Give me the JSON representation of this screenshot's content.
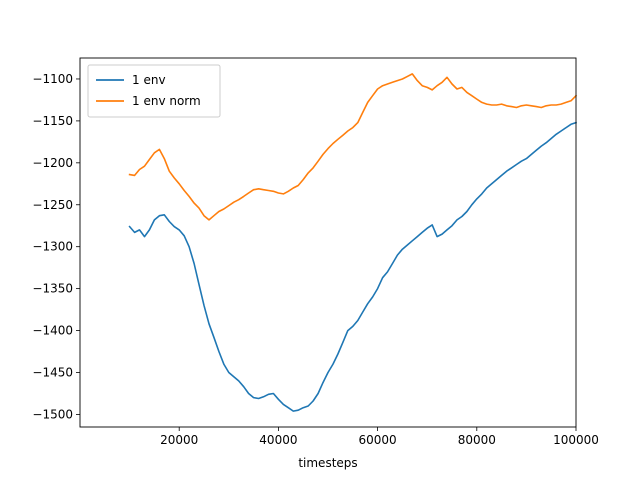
{
  "chart_data": {
    "type": "line",
    "title": "",
    "xlabel": "timesteps",
    "ylabel": "",
    "xlim": [
      0,
      100000
    ],
    "ylim": [
      -1515,
      -1075
    ],
    "x_ticks": [
      20000,
      40000,
      60000,
      80000,
      100000
    ],
    "x_tick_labels": [
      "20000",
      "40000",
      "60000",
      "80000",
      "100000"
    ],
    "y_ticks": [
      -1500,
      -1450,
      -1400,
      -1350,
      -1300,
      -1250,
      -1200,
      -1150,
      -1100
    ],
    "y_tick_labels": [
      "−1500",
      "−1450",
      "−1400",
      "−1350",
      "−1300",
      "−1250",
      "−1200",
      "−1150",
      "−1100"
    ],
    "grid": false,
    "legend_position": "top-left",
    "series": [
      {
        "name": "1 env",
        "color": "#1f77b4",
        "x": [
          10000,
          11000,
          12000,
          13000,
          14000,
          15000,
          16000,
          17000,
          18000,
          19000,
          20000,
          21000,
          22000,
          23000,
          24000,
          25000,
          26000,
          27000,
          28000,
          29000,
          30000,
          31000,
          32000,
          33000,
          34000,
          35000,
          36000,
          37000,
          38000,
          39000,
          40000,
          41000,
          42000,
          43000,
          44000,
          45000,
          46000,
          47000,
          48000,
          49000,
          50000,
          51000,
          52000,
          53000,
          54000,
          55000,
          56000,
          57000,
          58000,
          59000,
          60000,
          61000,
          62000,
          63000,
          64000,
          65000,
          66000,
          67000,
          68000,
          69000,
          70000,
          71000,
          72000,
          73000,
          74000,
          75000,
          76000,
          77000,
          78000,
          79000,
          80000,
          81000,
          82000,
          83000,
          84000,
          85000,
          86000,
          87000,
          88000,
          89000,
          90000,
          91000,
          92000,
          93000,
          94000,
          95000,
          96000,
          97000,
          98000,
          99000,
          100000
        ],
        "y": [
          -1276,
          -1283,
          -1280,
          -1288,
          -1280,
          -1268,
          -1263,
          -1262,
          -1270,
          -1276,
          -1280,
          -1287,
          -1300,
          -1320,
          -1345,
          -1370,
          -1392,
          -1408,
          -1425,
          -1440,
          -1450,
          -1455,
          -1460,
          -1467,
          -1475,
          -1480,
          -1481,
          -1479,
          -1476,
          -1475,
          -1482,
          -1488,
          -1492,
          -1496,
          -1495,
          -1492,
          -1490,
          -1484,
          -1475,
          -1462,
          -1450,
          -1440,
          -1428,
          -1414,
          -1400,
          -1395,
          -1388,
          -1378,
          -1368,
          -1360,
          -1350,
          -1337,
          -1330,
          -1320,
          -1310,
          -1303,
          -1298,
          -1293,
          -1288,
          -1283,
          -1278,
          -1274,
          -1288,
          -1285,
          -1280,
          -1275,
          -1268,
          -1264,
          -1258,
          -1250,
          -1243,
          -1237,
          -1230,
          -1225,
          -1220,
          -1215,
          -1210,
          -1206,
          -1202,
          -1198,
          -1195,
          -1190,
          -1185,
          -1180,
          -1176,
          -1171,
          -1166,
          -1162,
          -1158,
          -1154,
          -1152
        ]
      },
      {
        "name": "1 env norm",
        "color": "#ff7f0e",
        "x": [
          10000,
          11000,
          12000,
          13000,
          14000,
          15000,
          16000,
          17000,
          18000,
          19000,
          20000,
          21000,
          22000,
          23000,
          24000,
          25000,
          26000,
          27000,
          28000,
          29000,
          30000,
          31000,
          32000,
          33000,
          34000,
          35000,
          36000,
          37000,
          38000,
          39000,
          40000,
          41000,
          42000,
          43000,
          44000,
          45000,
          46000,
          47000,
          48000,
          49000,
          50000,
          51000,
          52000,
          53000,
          54000,
          55000,
          56000,
          57000,
          58000,
          59000,
          60000,
          61000,
          62000,
          63000,
          64000,
          65000,
          66000,
          67000,
          68000,
          69000,
          70000,
          71000,
          72000,
          73000,
          74000,
          75000,
          76000,
          77000,
          78000,
          79000,
          80000,
          81000,
          82000,
          83000,
          84000,
          85000,
          86000,
          87000,
          88000,
          89000,
          90000,
          91000,
          92000,
          93000,
          94000,
          95000,
          96000,
          97000,
          98000,
          99000,
          100000
        ],
        "y": [
          -1214,
          -1215,
          -1208,
          -1204,
          -1196,
          -1188,
          -1184,
          -1195,
          -1210,
          -1218,
          -1225,
          -1233,
          -1240,
          -1248,
          -1254,
          -1263,
          -1268,
          -1263,
          -1258,
          -1255,
          -1251,
          -1247,
          -1244,
          -1240,
          -1236,
          -1232,
          -1231,
          -1232,
          -1233,
          -1234,
          -1236,
          -1237,
          -1234,
          -1230,
          -1227,
          -1220,
          -1212,
          -1206,
          -1198,
          -1190,
          -1183,
          -1177,
          -1172,
          -1167,
          -1162,
          -1158,
          -1152,
          -1140,
          -1128,
          -1120,
          -1112,
          -1108,
          -1106,
          -1104,
          -1102,
          -1100,
          -1097,
          -1094,
          -1102,
          -1108,
          -1110,
          -1113,
          -1108,
          -1104,
          -1098,
          -1106,
          -1112,
          -1110,
          -1116,
          -1120,
          -1124,
          -1128,
          -1130,
          -1131,
          -1131,
          -1130,
          -1132,
          -1133,
          -1134,
          -1132,
          -1131,
          -1132,
          -1133,
          -1134,
          -1132,
          -1131,
          -1131,
          -1130,
          -1128,
          -1126,
          -1120
        ]
      }
    ]
  }
}
